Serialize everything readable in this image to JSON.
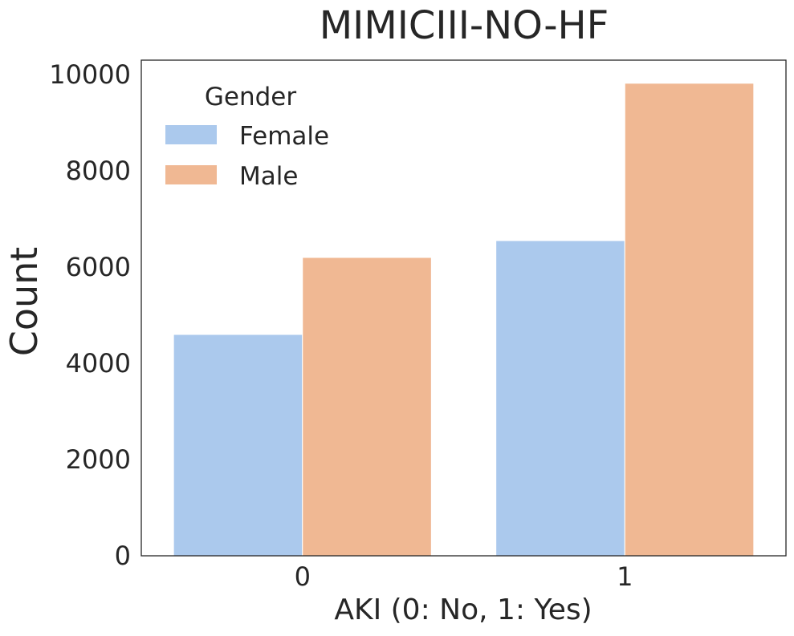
{
  "chart_data": {
    "type": "bar",
    "title": "MIMICIII-NO-HF",
    "xlabel": "AKI (0: No, 1: Yes)",
    "ylabel": "Count",
    "categories": [
      "0",
      "1"
    ],
    "series": [
      {
        "name": "Female",
        "color": "#abc9ed",
        "values": [
          4600,
          6550
        ]
      },
      {
        "name": "Male",
        "color": "#f0b893",
        "values": [
          6200,
          9820
        ]
      }
    ],
    "ylim": [
      0,
      10300
    ],
    "yticks": [
      0,
      2000,
      4000,
      6000,
      8000,
      10000
    ],
    "grid": false,
    "legend": {
      "title": "Gender",
      "placement": "top-left"
    }
  }
}
